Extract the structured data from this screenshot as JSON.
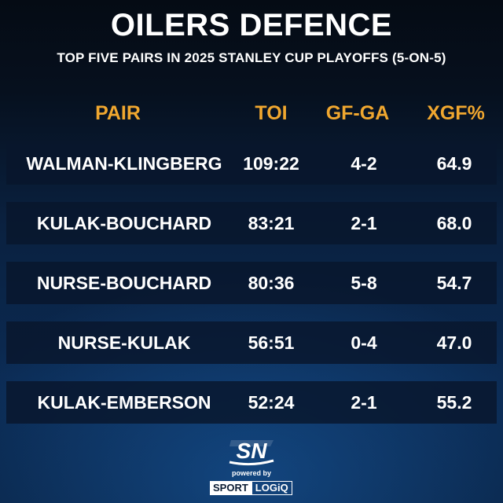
{
  "title": "OILERS DEFENCE",
  "subtitle": "TOP FIVE PAIRS IN 2025 STANLEY CUP PLAYOFFS (5-ON-5)",
  "columns": {
    "pair": "PAIR",
    "toi": "TOI",
    "gfga": "GF-GA",
    "xgf": "XGF%"
  },
  "rows": [
    {
      "pair": "WALMAN-KLINGBERG",
      "toi": "109:22",
      "gfga": "4-2",
      "xgf": "64.9"
    },
    {
      "pair": "KULAK-BOUCHARD",
      "toi": "83:21",
      "gfga": "2-1",
      "xgf": "68.0"
    },
    {
      "pair": "NURSE-BOUCHARD",
      "toi": "80:36",
      "gfga": "5-8",
      "xgf": "54.7"
    },
    {
      "pair": "NURSE-KULAK",
      "toi": "56:51",
      "gfga": "0-4",
      "xgf": "47.0"
    },
    {
      "pair": "KULAK-EMBERSON",
      "toi": "52:24",
      "gfga": "2-1",
      "xgf": "55.2"
    }
  ],
  "branding": {
    "logo_text": "SN",
    "powered_by": "powered by",
    "sponsor_a": "SPORT",
    "sponsor_b": "LOGiQ"
  },
  "colors": {
    "header": "#f0a72f",
    "row_bg": "#08162c",
    "text": "#ffffff"
  }
}
